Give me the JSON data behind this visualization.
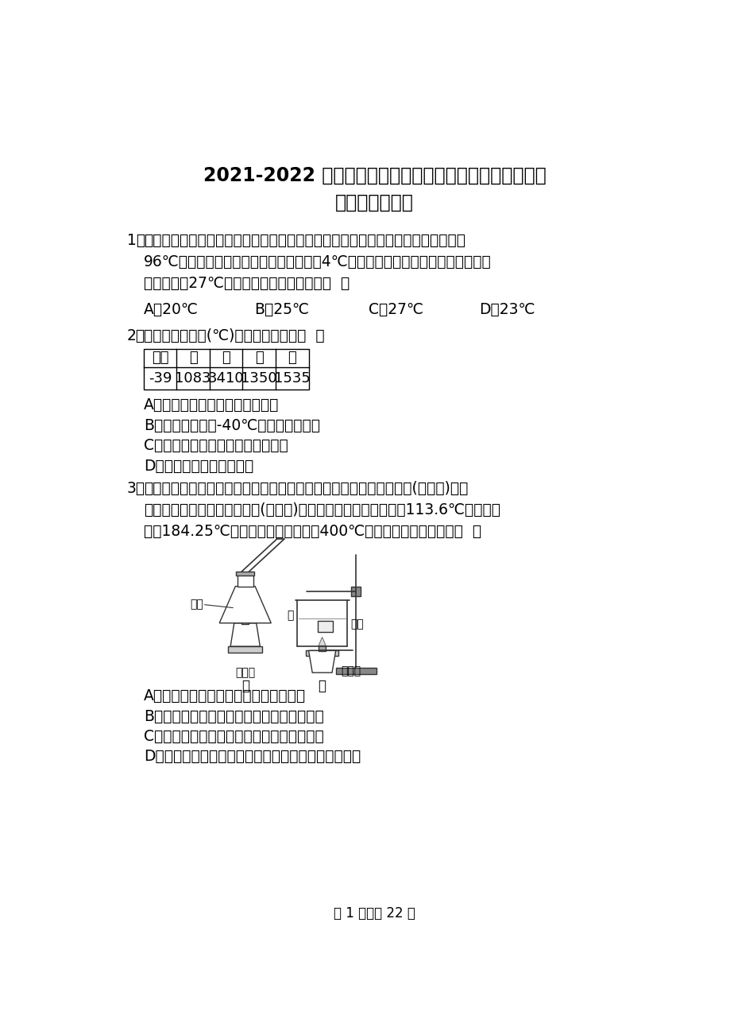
{
  "title_line1": "2021-2022 学年河南省安阳市林州九中九年级（上）第一",
  "title_line2": "次月考物理试卷",
  "bg_color": "#ffffff",
  "text_color": "#000000",
  "q1_stem_lines": [
    "一支刻度均匀但读数不准确的温度计，在测量标准大气压下沸水的温度时，示数是",
    "96℃，在测冰水混合物温度时，其示数为4℃，若用此温度计去测量一杯温水温度",
    "时，示数是27℃，则这杯水的实际温度为（  ）"
  ],
  "q1_options": [
    "A．20℃",
    "B．25℃",
    "C．27℃",
    "D．23℃"
  ],
  "q2_stem": "几种物质的熔点(℃)如表中所示，则（  ）",
  "table_headers": [
    "水银",
    "铜",
    "钨",
    "钢",
    "铁"
  ],
  "table_values": [
    "-39",
    "1083",
    "3410",
    "1350",
    "1535"
  ],
  "q2_options": [
    "A．铁块掉入钢水中一定能够熔化",
    "B．水银温度计在-40℃的地方仍能使用",
    "C．钨做灯丝，是因为它的熔点较高",
    "D．用铜锅冶炼钢是可以的"
  ],
  "q3_stem_lines": [
    "在学习升华和凝华这部分内容时，小明同学将试管放在酒精灯上加热(如图甲)，小",
    "阳同学将碘锤放入热水中加热(如图乙)。已知常压下，碘的熔点为113.6℃，碘的沸",
    "点为184.25℃，酒精灯火焰的温度约400℃。下列说法中正确的是（  ）"
  ],
  "q3_options": [
    "A．只有小明的试管中会出现紫色碘蒸气",
    "B．小阳的实验证明碘能从固态直接变为气态",
    "C．小明的实验证明碘能从固态直接变为气态",
    "D．小明和小阳的实验都能证明碘从固态直接变为气态"
  ],
  "footer": "第 1 页，共 22 页"
}
